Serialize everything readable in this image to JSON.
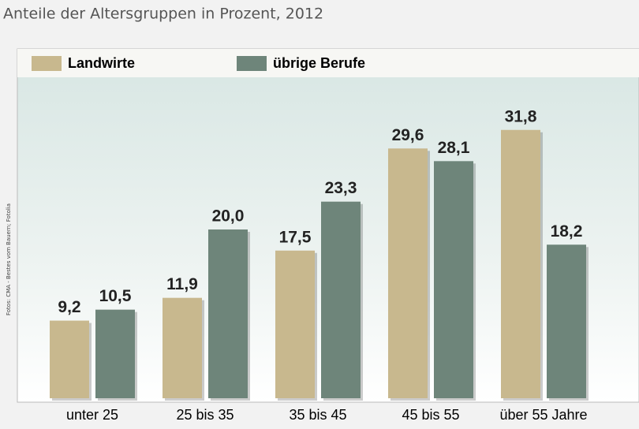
{
  "chart_data": {
    "type": "bar",
    "title": "Anteile der Altersgruppen in Prozent, 2012",
    "source": "Fotos: CMA - Bestes vom Bauern; Fotolia",
    "categories": [
      "unter 25",
      "25 bis 35",
      "35 bis 45",
      "45 bis 55",
      "über 55 Jahre"
    ],
    "series": [
      {
        "name": "Landwirte",
        "color": "#c8b88e",
        "values": [
          9.2,
          11.9,
          17.5,
          29.6,
          31.8
        ],
        "value_labels": [
          "9,2",
          "11,9",
          "17,5",
          "29,6",
          "31,8"
        ]
      },
      {
        "name": "übrige Berufe",
        "color": "#6e857a",
        "values": [
          10.5,
          20.0,
          23.3,
          28.1,
          18.2
        ],
        "value_labels": [
          "10,5",
          "20,0",
          "23,3",
          "28,1",
          "18,2"
        ]
      }
    ]
  }
}
